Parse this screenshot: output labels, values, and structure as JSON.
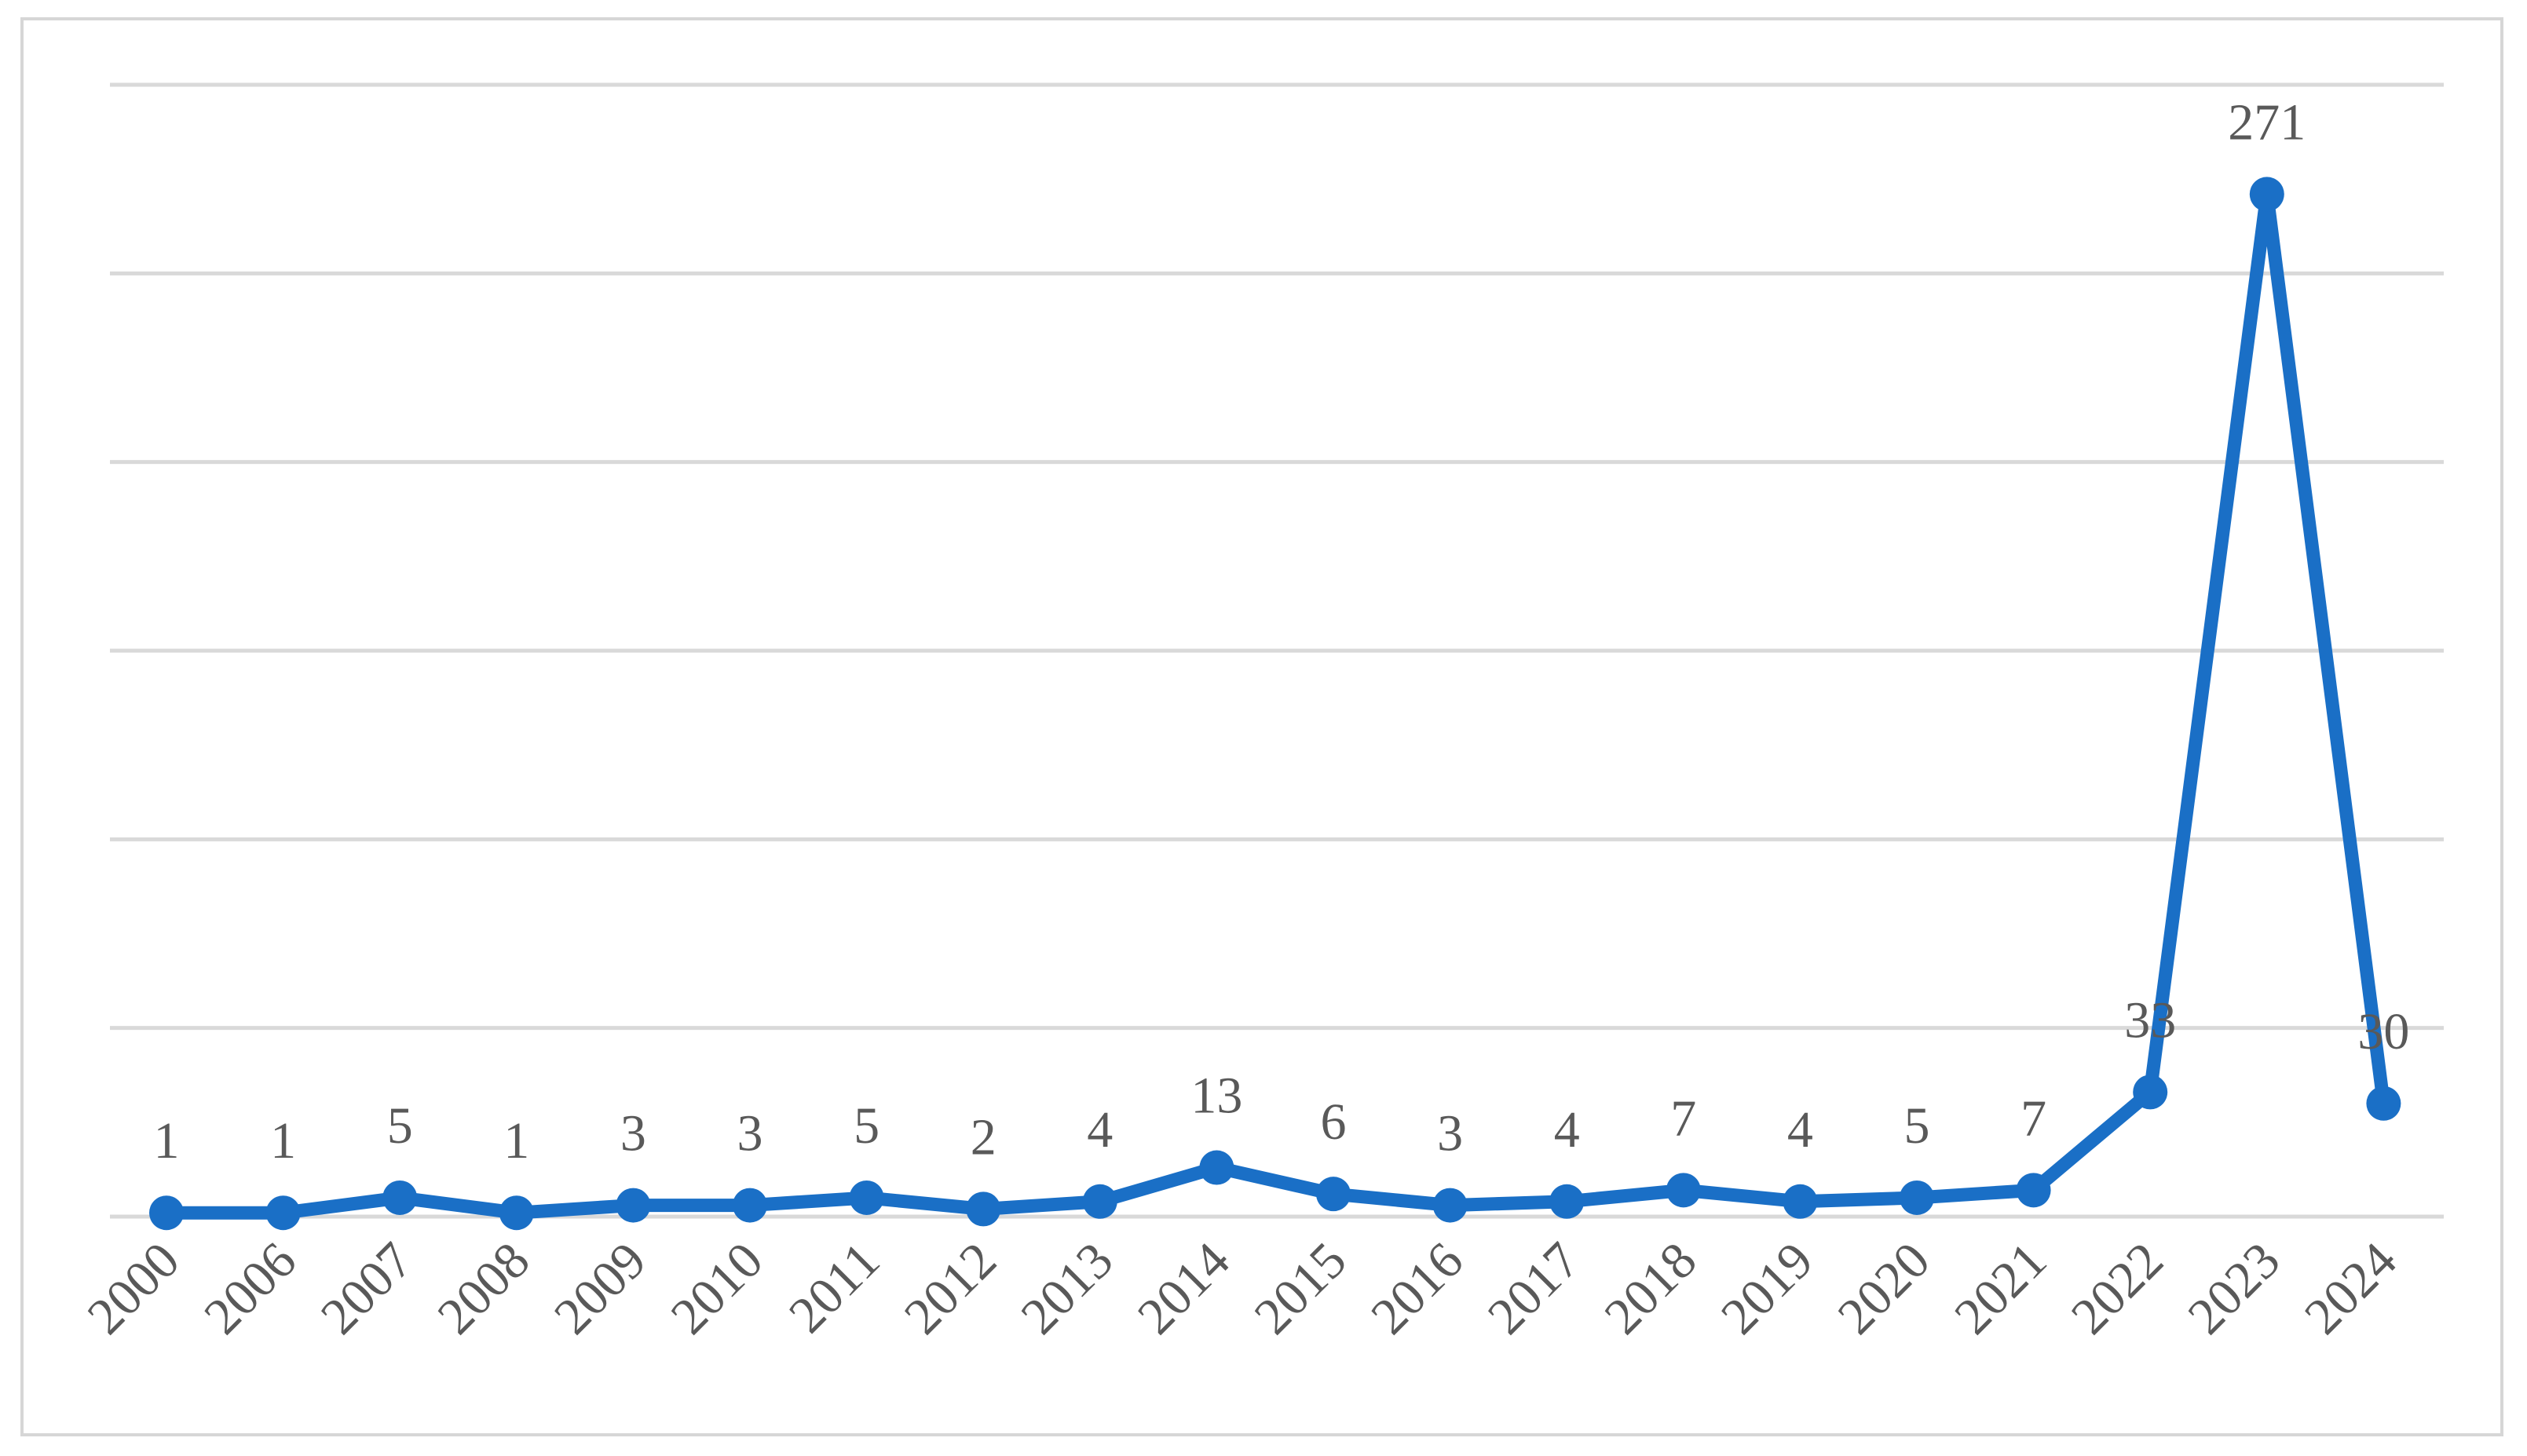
{
  "chart_data": {
    "type": "line",
    "title": "",
    "xlabel": "",
    "ylabel": "",
    "categories": [
      "2000",
      "2006",
      "2007",
      "2008",
      "2009",
      "2010",
      "2011",
      "2012",
      "2013",
      "2014",
      "2015",
      "2016",
      "2017",
      "2018",
      "2019",
      "2020",
      "2021",
      "2022",
      "2023",
      "2024"
    ],
    "series": [
      {
        "values": [
          1,
          1,
          5,
          1,
          3,
          3,
          5,
          2,
          4,
          13,
          6,
          3,
          4,
          7,
          4,
          5,
          7,
          33,
          271,
          30
        ]
      }
    ],
    "ylim": [
      0,
      300
    ],
    "y_gridline_step": 50,
    "y_tick_labels_shown": false,
    "data_labels_shown": true,
    "legend": "none",
    "grid": "horizontal",
    "colors": {
      "series": "#1a6fc6",
      "gridline": "#d9d9d9",
      "text": "#595959",
      "frame": "#d6d6d6"
    }
  }
}
